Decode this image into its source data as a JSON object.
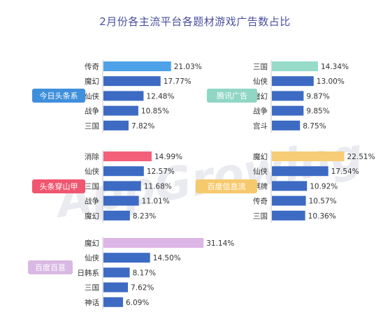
{
  "title": "2月份各主流平台各题材游戏广告数占比",
  "watermark": "AppGrowing",
  "chart_data": [
    {
      "type": "bar",
      "platform": "今日头条系",
      "categories": [
        "传奇",
        "魔幻",
        "仙侠",
        "战争",
        "三国"
      ],
      "values": [
        21.03,
        17.77,
        12.48,
        10.85,
        7.82
      ],
      "highlight_color": "#4ea2e8",
      "bar_color": "#3d6bc4",
      "badge_color": "#3f8fdc"
    },
    {
      "type": "bar",
      "platform": "腾讯广告",
      "categories": [
        "三国",
        "仙侠",
        "魔幻",
        "战争",
        "宫斗"
      ],
      "values": [
        14.34,
        13.0,
        9.87,
        9.85,
        8.75
      ],
      "highlight_color": "#96dcc9",
      "bar_color": "#3d6bc4",
      "badge_color": "#8fd6c4"
    },
    {
      "type": "bar",
      "platform": "头条穿山甲",
      "categories": [
        "消除",
        "仙侠",
        "三国",
        "战争",
        "魔幻"
      ],
      "values": [
        14.99,
        12.57,
        11.68,
        11.01,
        8.23
      ],
      "highlight_color": "#f2607a",
      "bar_color": "#3d6bc4",
      "badge_color": "#f0566f"
    },
    {
      "type": "bar",
      "platform": "百度信息流",
      "categories": [
        "魔幻",
        "仙侠",
        "棋牌",
        "传奇",
        "三国"
      ],
      "values": [
        22.51,
        17.54,
        10.92,
        10.57,
        10.36
      ],
      "highlight_color": "#f7cd78",
      "bar_color": "#3d6bc4",
      "badge_color": "#f6c96e"
    },
    {
      "type": "bar",
      "platform": "百度百意",
      "categories": [
        "魔幻",
        "仙侠",
        "日韩系",
        "三国",
        "神话"
      ],
      "values": [
        31.14,
        14.5,
        8.17,
        7.62,
        6.09
      ],
      "highlight_color": "#dcb6e6",
      "bar_color": "#3d6bc4",
      "badge_color": "#d9b8e4"
    }
  ]
}
